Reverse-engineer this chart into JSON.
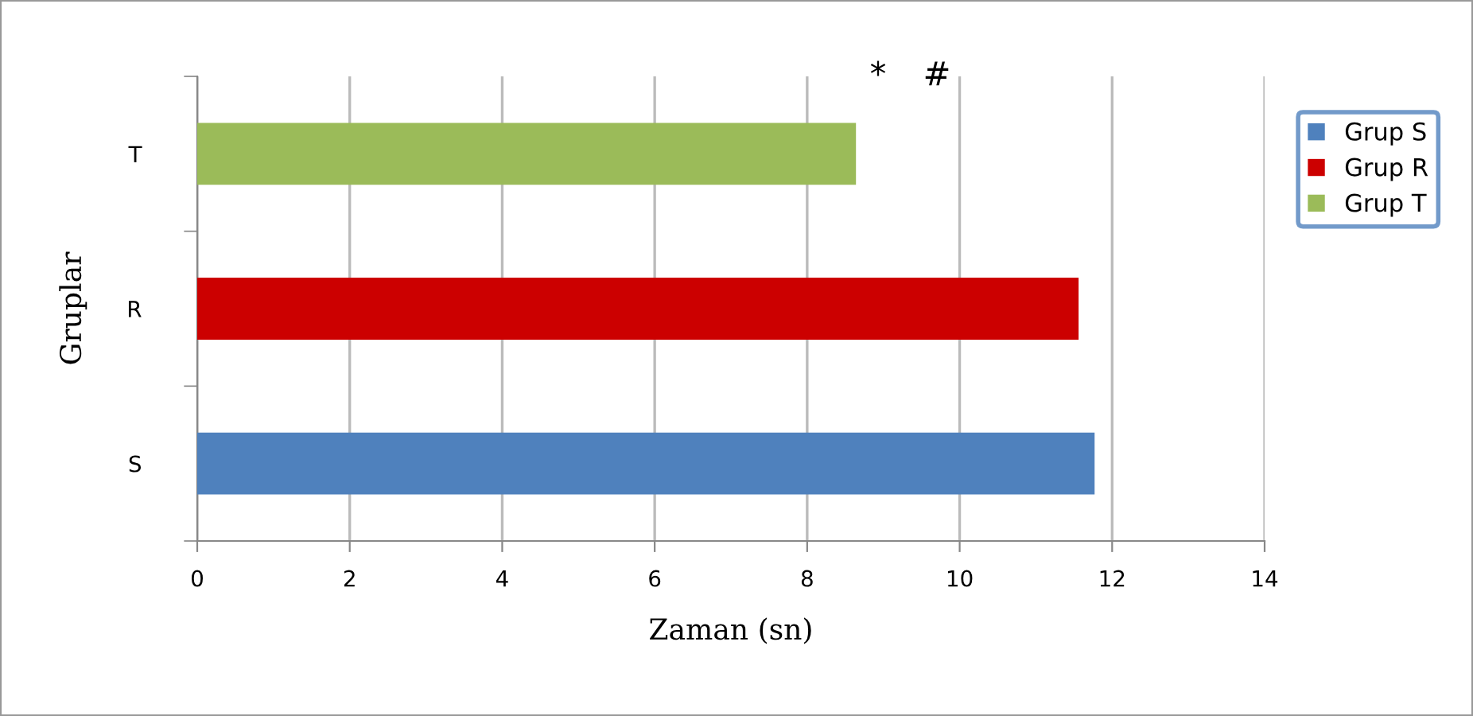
{
  "chart_data": {
    "type": "bar",
    "orientation": "horizontal",
    "xlabel": "Zaman (sn)",
    "ylabel": "Gruplar",
    "categories": [
      "T",
      "R",
      "S"
    ],
    "series": [
      {
        "name": "Grup S",
        "color": "#4f81bd",
        "values": [
          null,
          null,
          11.77
        ]
      },
      {
        "name": "Grup R",
        "color": "#cc0000",
        "values": [
          null,
          11.56,
          null
        ]
      },
      {
        "name": "Grup T",
        "color": "#9bbb59",
        "values": [
          8.64,
          null,
          null
        ]
      }
    ],
    "xlim": [
      0,
      14
    ],
    "xticks": [
      0,
      2,
      4,
      6,
      8,
      10,
      12,
      14
    ],
    "grid": "x",
    "legend": "right",
    "annotations": [
      "*",
      "#"
    ]
  }
}
